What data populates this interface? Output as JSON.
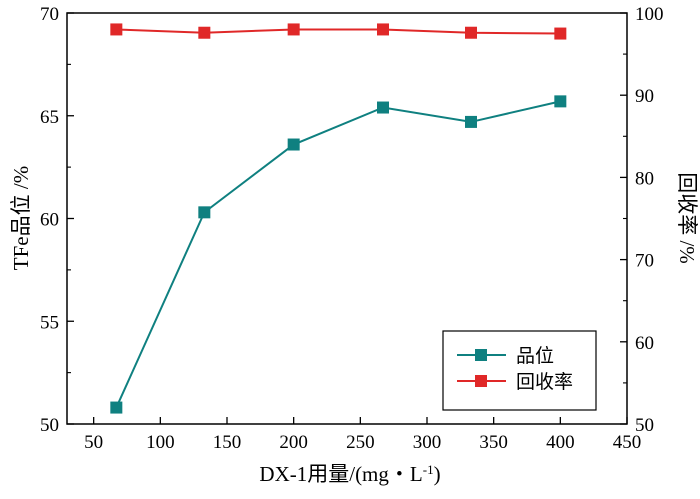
{
  "chart_data": {
    "type": "line",
    "title": "",
    "xlabel": "DX-1用量/(mg・L",
    "xlabel_superscript": "-1",
    "xlabel_suffix": ")",
    "ylabel_left": "TFe品位 /%",
    "ylabel_right": "回收率 /%",
    "x": [
      67,
      133,
      200,
      267,
      333,
      400
    ],
    "xlim": [
      30,
      450
    ],
    "xticks": [
      50,
      100,
      150,
      200,
      250,
      300,
      350,
      400,
      450
    ],
    "ylim_left": [
      50,
      70
    ],
    "yticks_left": [
      50,
      55,
      60,
      65,
      70
    ],
    "ylim_right": [
      50,
      100
    ],
    "yticks_right": [
      50,
      60,
      70,
      80,
      90,
      100
    ],
    "legend_position": "bottom-right",
    "series": [
      {
        "name": "品位",
        "axis": "left",
        "color": "#0f8080",
        "marker": "square",
        "values": [
          50.8,
          60.3,
          63.6,
          65.4,
          64.7,
          65.7
        ]
      },
      {
        "name": "回收率",
        "axis": "right",
        "color": "#e02828",
        "marker": "square",
        "values": [
          98.0,
          97.6,
          98.0,
          98.0,
          97.6,
          97.5
        ]
      }
    ]
  }
}
